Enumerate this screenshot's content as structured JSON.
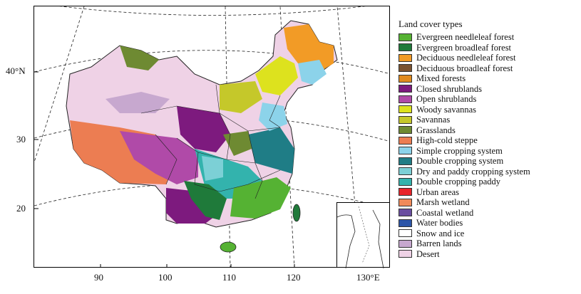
{
  "map": {
    "y_axis_labels": [
      "40°N",
      "30",
      "20"
    ],
    "x_axis_labels": [
      "90",
      "100",
      "110",
      "120",
      "130°E"
    ]
  },
  "legend": {
    "title": "Land cover types",
    "items": [
      {
        "label": "Evergreen needleleaf forest",
        "color": "#55b233"
      },
      {
        "label": "Evergreen broadleaf forest",
        "color": "#1f7a3a"
      },
      {
        "label": "Deciduous needleleaf forest",
        "color": "#f29b26"
      },
      {
        "label": "Deciduous broadleaf forest",
        "color": "#7b5330"
      },
      {
        "label": "Mixed forests",
        "color": "#e08a1e"
      },
      {
        "label": "Closed shrublands",
        "color": "#7d1a7e"
      },
      {
        "label": "Open shrublands",
        "color": "#b04aa8"
      },
      {
        "label": "Woody savannas",
        "color": "#dde21e"
      },
      {
        "label": "Savannas",
        "color": "#c5c82a"
      },
      {
        "label": "Grasslands",
        "color": "#6e8a32"
      },
      {
        "label": "High-cold steppe",
        "color": "#ec7d52"
      },
      {
        "label": "Simple cropping system",
        "color": "#8cd3ea"
      },
      {
        "label": "Double cropping system",
        "color": "#1f7d86"
      },
      {
        "label": "Dry and paddy cropping system",
        "color": "#7cd0d6"
      },
      {
        "label": "Double cropping paddy",
        "color": "#33b3ad"
      },
      {
        "label": "Urban areas",
        "color": "#e8232a"
      },
      {
        "label": "Marsh wetland",
        "color": "#f08a5a"
      },
      {
        "label": "Coastal wetland",
        "color": "#6a4ea0"
      },
      {
        "label": "Water bodies",
        "color": "#2c55a8"
      },
      {
        "label": "Snow and ice",
        "color": "#ffffff"
      },
      {
        "label": "Barren lands",
        "color": "#c7a8cf"
      },
      {
        "label": "Desert",
        "color": "#efd2e6"
      }
    ]
  }
}
